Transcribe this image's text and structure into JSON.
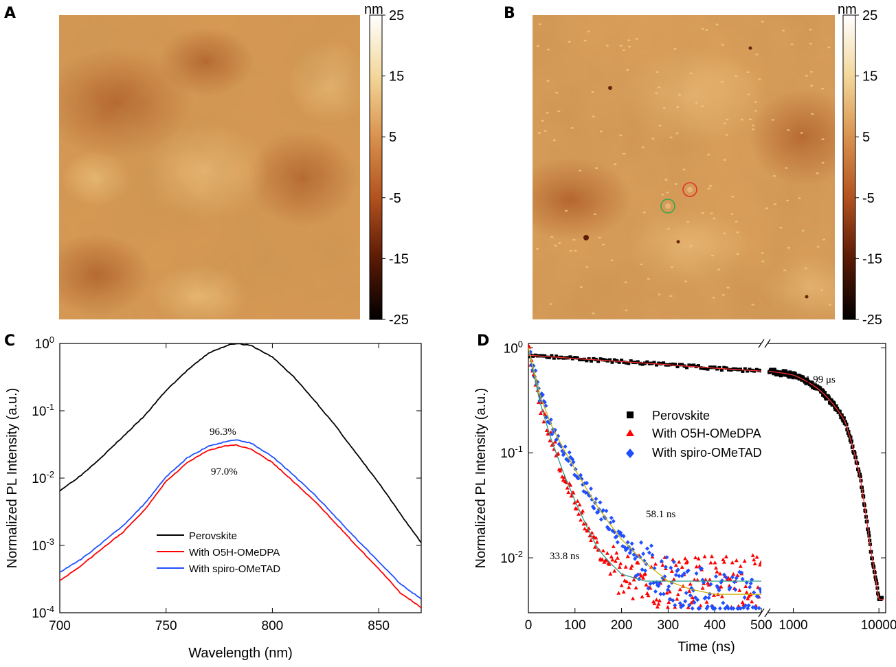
{
  "panels": {
    "a": {
      "label": "A"
    },
    "b": {
      "label": "B"
    },
    "c": {
      "label": "C"
    },
    "d": {
      "label": "D"
    }
  },
  "colorbar": {
    "unit": "nm",
    "ticks": [
      "25",
      "15",
      "5",
      "-5",
      "-15",
      "-25"
    ],
    "colors": [
      "#ffffff",
      "#f3d79a",
      "#d9924e",
      "#b2521f",
      "#5a1a05",
      "#000000"
    ]
  },
  "afm_markers": {
    "red_circle_color": "#e0312a",
    "green_circle_color": "#3aa64a"
  },
  "chart_data": [
    {
      "type": "line",
      "panel": "C",
      "xlabel": "Wavelength (nm)",
      "ylabel": "Normalized PL Intensity (a.u.)",
      "xlim": [
        700,
        870
      ],
      "ylim": [
        0.0001,
        1
      ],
      "yscale": "log",
      "xticks": [
        "700",
        "750",
        "800",
        "850"
      ],
      "yticks": [
        "10^0",
        "10^-1",
        "10^-2",
        "10^-3",
        "10^-4"
      ],
      "legend_position": "lower-center",
      "annotations": [
        "96.3%",
        "97.0%"
      ],
      "series": [
        {
          "name": "Perovskite",
          "color": "#000000",
          "x": [
            700,
            710,
            720,
            730,
            740,
            750,
            760,
            770,
            780,
            783,
            790,
            800,
            810,
            820,
            830,
            840,
            850,
            860,
            870
          ],
          "y": [
            0.0065,
            0.011,
            0.021,
            0.042,
            0.085,
            0.2,
            0.4,
            0.72,
            0.97,
            1.0,
            0.93,
            0.63,
            0.32,
            0.14,
            0.058,
            0.022,
            0.0085,
            0.003,
            0.0011
          ]
        },
        {
          "name": "With O5H-OMeDPA",
          "color": "#ff0000",
          "x": [
            700,
            710,
            720,
            730,
            740,
            750,
            760,
            770,
            780,
            783,
            790,
            800,
            810,
            820,
            830,
            840,
            850,
            860,
            870
          ],
          "y": [
            0.0003,
            0.0005,
            0.0009,
            0.0016,
            0.0034,
            0.009,
            0.017,
            0.026,
            0.031,
            0.031,
            0.027,
            0.017,
            0.0088,
            0.0045,
            0.0021,
            0.00095,
            0.00045,
            0.0002,
            0.00012
          ]
        },
        {
          "name": "With spiro-OMeTAD",
          "color": "#1f4fff",
          "x": [
            700,
            710,
            720,
            730,
            740,
            750,
            760,
            770,
            780,
            783,
            790,
            800,
            810,
            820,
            830,
            840,
            850,
            860,
            870
          ],
          "y": [
            0.0004,
            0.00062,
            0.0011,
            0.002,
            0.0042,
            0.0105,
            0.02,
            0.03,
            0.036,
            0.037,
            0.033,
            0.021,
            0.011,
            0.0056,
            0.0026,
            0.0012,
            0.00058,
            0.00027,
            0.00016
          ]
        }
      ]
    },
    {
      "type": "scatter",
      "panel": "D",
      "xlabel": "Time (ns)",
      "ylabel": "Normalized PL Intensity (a.u.)",
      "yscale": "log",
      "ylim": [
        0.003,
        1.1
      ],
      "x_broken_axis": {
        "left_segment": [
          0,
          500
        ],
        "right_segment": [
          500,
          10000
        ]
      },
      "xticks": [
        "0",
        "100",
        "200",
        "300",
        "400",
        "500",
        "1000",
        "10000"
      ],
      "yticks": [
        "10^0",
        "10^-1",
        "10^-2"
      ],
      "legend_position": "center",
      "annotations": [
        "1.99 μs",
        "58.1 ns",
        "33.8 ns"
      ],
      "series": [
        {
          "name": "Perovskite",
          "color": "#000000",
          "marker": "square",
          "lifetime_ns": 1990,
          "x": [
            0,
            100,
            200,
            300,
            400,
            500,
            1000,
            2000,
            4000,
            6000,
            8000,
            10000
          ],
          "y": [
            0.85,
            0.79,
            0.74,
            0.69,
            0.64,
            0.6,
            0.55,
            0.4,
            0.2,
            0.06,
            0.012,
            0.004
          ]
        },
        {
          "name": "With O5H-OMeDPA",
          "color": "#ff0000",
          "marker": "triangle",
          "lifetime_ns": 33.8,
          "x": [
            0,
            25,
            50,
            75,
            100,
            125,
            150,
            175,
            200,
            250,
            300,
            350,
            400,
            450,
            500
          ],
          "y": [
            1.0,
            0.3,
            0.13,
            0.065,
            0.035,
            0.02,
            0.012,
            0.009,
            0.007,
            0.006,
            0.006,
            0.006,
            0.006,
            0.006,
            0.006
          ]
        },
        {
          "name": "With spiro-OMeTAD",
          "color": "#1f4fff",
          "marker": "diamond",
          "lifetime_ns": 58.1,
          "x": [
            0,
            25,
            50,
            75,
            100,
            125,
            150,
            175,
            200,
            250,
            300,
            350,
            400,
            450,
            500
          ],
          "y": [
            1.0,
            0.35,
            0.18,
            0.11,
            0.07,
            0.045,
            0.03,
            0.021,
            0.015,
            0.009,
            0.006,
            0.005,
            0.0045,
            0.0045,
            0.0045
          ]
        }
      ]
    }
  ]
}
